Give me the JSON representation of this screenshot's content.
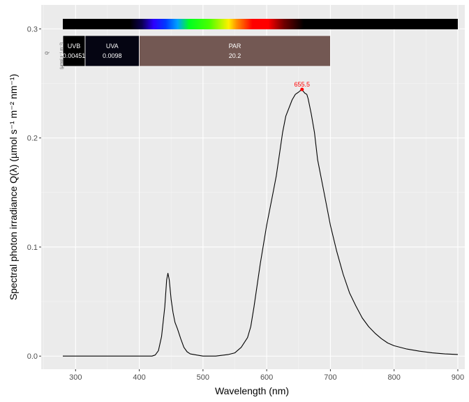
{
  "chart_data": {
    "type": "line",
    "xlabel": "Wavelength (nm)",
    "ylabel": "Spectral  photon  irradiance  Q(λ)  (µmol s⁻¹ m⁻² nm⁻¹)",
    "xlim": [
      246,
      911
    ],
    "ylim": [
      -0.012,
      0.322
    ],
    "x_ticks": [
      300,
      400,
      500,
      600,
      700,
      800,
      900
    ],
    "x_tick_labels": [
      "300",
      "400",
      "500",
      "600",
      "700",
      "800",
      "900"
    ],
    "y_ticks": [
      0.0,
      0.1,
      0.2,
      0.3
    ],
    "y_tick_labels": [
      "0.0",
      "0.1",
      "0.2",
      "0.3"
    ],
    "grid": true,
    "series": [
      {
        "name": "spectrum",
        "color": "#000000",
        "x": [
          280,
          420,
          425,
          430,
          435,
          440,
          443,
          445,
          447,
          450,
          453,
          456,
          460,
          465,
          470,
          475,
          480,
          490,
          500,
          520,
          540,
          550,
          560,
          570,
          575,
          580,
          590,
          600,
          610,
          615,
          620,
          625,
          630,
          640,
          645,
          650,
          652,
          655.5,
          657,
          660,
          663,
          665,
          670,
          675,
          680,
          690,
          700,
          710,
          720,
          730,
          740,
          750,
          760,
          770,
          780,
          790,
          800,
          820,
          840,
          860,
          880,
          900
        ],
        "values": [
          0.0,
          0.0,
          0.001,
          0.005,
          0.018,
          0.045,
          0.07,
          0.076,
          0.07,
          0.052,
          0.04,
          0.031,
          0.025,
          0.016,
          0.008,
          0.004,
          0.002,
          0.001,
          0.0,
          0.0,
          0.0015,
          0.003,
          0.008,
          0.017,
          0.027,
          0.045,
          0.085,
          0.12,
          0.15,
          0.165,
          0.185,
          0.205,
          0.22,
          0.235,
          0.24,
          0.242,
          0.243,
          0.2445,
          0.243,
          0.241,
          0.24,
          0.236,
          0.222,
          0.205,
          0.18,
          0.15,
          0.12,
          0.096,
          0.075,
          0.058,
          0.046,
          0.035,
          0.027,
          0.021,
          0.016,
          0.012,
          0.0095,
          0.0065,
          0.0045,
          0.003,
          0.002,
          0.0015
        ]
      }
    ],
    "peak": {
      "x": 655.5,
      "y": 0.2445,
      "label": "655.5",
      "color": "#ff0000"
    },
    "color_bar": {
      "from": 280,
      "to": 900
    },
    "band_panel_label": "Q",
    "band_panel_units": "(µmol s⁻¹ m⁻²)",
    "bands": [
      {
        "name": "UVB",
        "value": "0.00451",
        "from": 280,
        "to": 315,
        "color": "#000000"
      },
      {
        "name": "UVA",
        "value": "0.0098",
        "from": 315,
        "to": 400,
        "color": "#050512"
      },
      {
        "name": "PAR",
        "value": "20.2",
        "from": 400,
        "to": 700,
        "color": "#735853"
      }
    ]
  }
}
